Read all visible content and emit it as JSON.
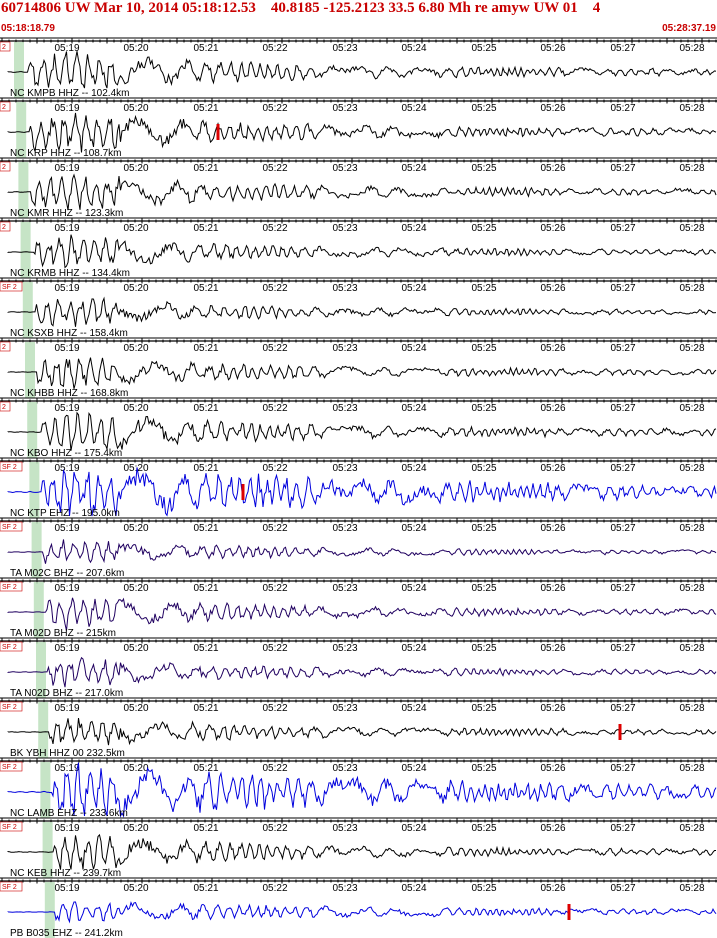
{
  "header": {
    "title": "60714806 UW Mar 10, 2014 05:18:12.53    40.8185 -125.2123 33.5 6.80 Mh re amyw UW 01    4",
    "start_time": "05:18:18.79",
    "end_time": "05:28:37.19"
  },
  "time_ticks": [
    "05:19",
    "05:20",
    "05:21",
    "05:22",
    "05:23",
    "05:24",
    "05:25",
    "05:26",
    "05:27",
    "05:28"
  ],
  "colors": {
    "header_text": "#c80000",
    "black_trace": "#000000",
    "blue_trace": "#0000dd",
    "purple_trace": "#200060",
    "pick_marker": "#dd0000",
    "arrival_band": "#b8ddb8",
    "red_label": "#cc0000"
  },
  "traces": [
    {
      "label": "NC KMPB HHZ -- 102.4km",
      "tag": "2",
      "color": "black",
      "amp": 1.0
    },
    {
      "label": "NC KRP HHZ -- 108.7km",
      "tag": "2",
      "color": "black",
      "amp": 1.0,
      "pick": true
    },
    {
      "label": "NC KMR HHZ -- 123.3km",
      "tag": "2",
      "color": "black",
      "amp": 0.9
    },
    {
      "label": "NC KRMB HHZ -- 134.4km",
      "tag": "2",
      "color": "black",
      "amp": 0.8
    },
    {
      "label": "NC KSXB HHZ -- 158.4km",
      "tag": "SF 2",
      "color": "black",
      "amp": 0.7
    },
    {
      "label": "NC KHBB HHZ -- 168.8km",
      "tag": "2",
      "color": "black",
      "amp": 0.8
    },
    {
      "label": "NC KBO HHZ -- 175.4km",
      "tag": "2",
      "color": "black",
      "amp": 1.0
    },
    {
      "label": "NC KTP EHZ -- 195.0km",
      "tag": "SF 2",
      "color": "blue",
      "amp": 1.3,
      "pick": true
    },
    {
      "label": "TA M02C BHZ -- 207.6km",
      "tag": "SF 2",
      "color": "purple",
      "amp": 0.6
    },
    {
      "label": "TA M02D BHZ -- 215km",
      "tag": "SF 2",
      "color": "purple",
      "amp": 0.8
    },
    {
      "label": "TA N02D BHZ -- 217.0km",
      "tag": "SF 2",
      "color": "purple",
      "amp": 0.7
    },
    {
      "label": "BK YBH HHZ 00 232.5km",
      "tag": "SF 2",
      "color": "black",
      "amp": 0.8,
      "pick": true
    },
    {
      "label": "NC LAMB EHZ -- 233.6km",
      "tag": "SF 2",
      "color": "blue",
      "amp": 1.3
    },
    {
      "label": "NC KEB HHZ -- 239.7km",
      "tag": "SF 2",
      "color": "black",
      "amp": 0.9
    },
    {
      "label": "PB B035 EHZ -- 241.2km",
      "tag": "SF 2",
      "color": "blue",
      "amp": 0.5,
      "pick": true
    }
  ]
}
